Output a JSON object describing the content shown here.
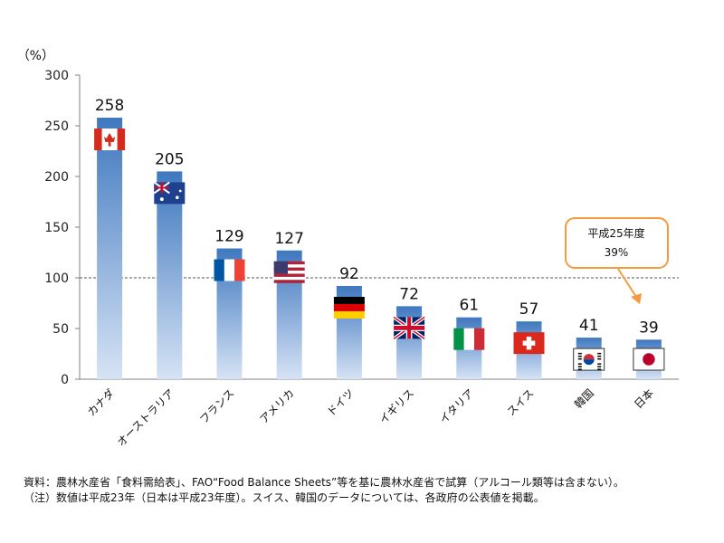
{
  "chart_data": {
    "type": "bar",
    "unit_label": "（%）",
    "categories": [
      "カナダ",
      "オーストラリア",
      "フランス",
      "アメリカ",
      "ドイツ",
      "イギリス",
      "イタリア",
      "スイス",
      "韓国",
      "日本"
    ],
    "values": [
      258,
      205,
      129,
      127,
      92,
      72,
      61,
      57,
      41,
      39
    ],
    "value_labels": [
      "258",
      "205",
      "129",
      "127",
      "92",
      "72",
      "61",
      "57",
      "41",
      "39"
    ],
    "flags": [
      "canada-flag",
      "australia-flag",
      "france-flag",
      "usa-flag",
      "germany-flag",
      "uk-flag",
      "italy-flag",
      "switzerland-flag",
      "korea-flag",
      "japan-flag"
    ],
    "yticks": [
      0,
      50,
      100,
      150,
      200,
      250,
      300
    ],
    "ytick_labels": [
      "0",
      "50",
      "100",
      "150",
      "200",
      "250",
      "300"
    ],
    "ylim": [
      0,
      300
    ],
    "reference_line": 100,
    "grid": false,
    "callout": {
      "line1": "平成25年度",
      "line2": "39%"
    },
    "colors": {
      "bar_dark": "#3f78bf",
      "bar_light": "#d6e3f5",
      "callout_border": "#f59a3f",
      "callout_arrow": "#f59a3f"
    }
  },
  "footnotes": {
    "line1": "資料：農林水産省「食料需給表」、FAO“Food Balance Sheets”等を基に農林水産省で試算（アルコール類等は含まない）。",
    "line2": "（注）数値は平成23年（日本は平成23年度）。スイス、韓国のデータについては、各政府の公表値を掲載。"
  }
}
